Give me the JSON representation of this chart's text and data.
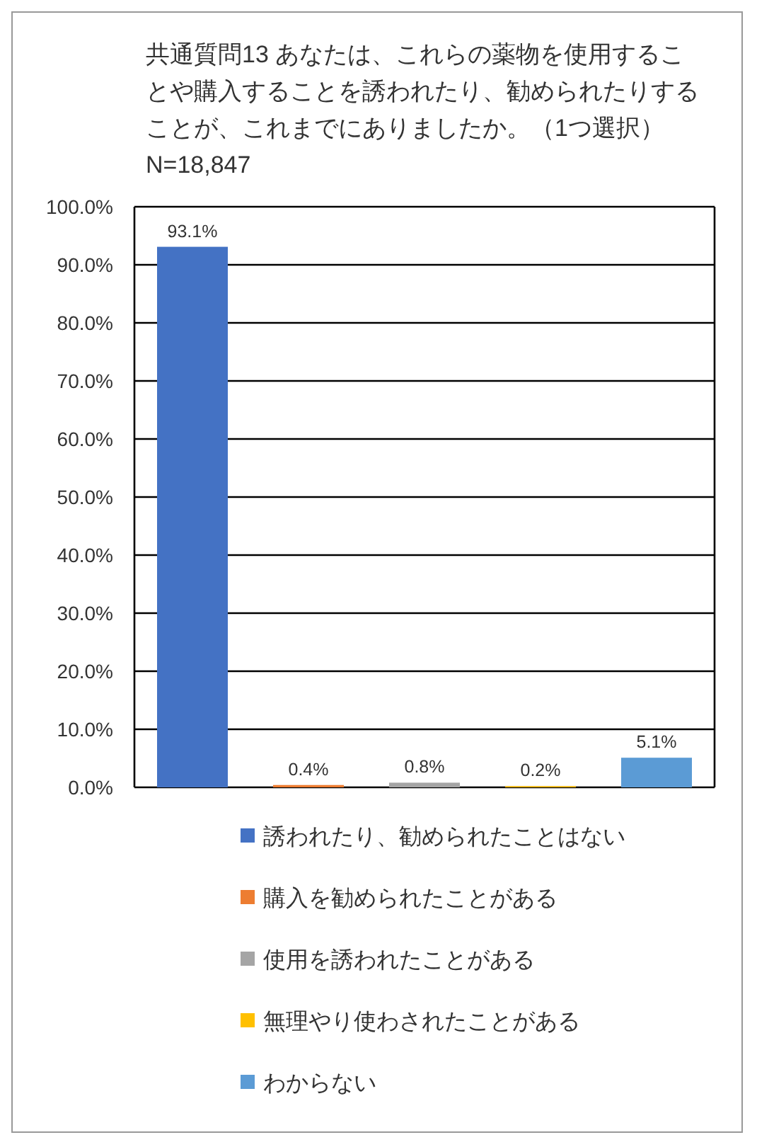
{
  "chart_data": {
    "type": "bar",
    "title": "共通質問13 あなたは、これらの薬物を使用することや購入することを誘われたり、勧められたりすることが、これまでにありましたか。（1つ選択）N=18,847",
    "categories": [
      null,
      null,
      null,
      null,
      null
    ],
    "series": [
      {
        "name": "誘われたり、勧められたことはない",
        "color": "#4472c4",
        "values": [
          93.1,
          null,
          null,
          null,
          null
        ],
        "value_labels": [
          "93.1%",
          null,
          null,
          null,
          null
        ]
      },
      {
        "name": "購入を勧められたことがある",
        "color": "#ed7d31",
        "values": [
          null,
          0.4,
          null,
          null,
          null
        ],
        "value_labels": [
          null,
          "0.4%",
          null,
          null,
          null
        ]
      },
      {
        "name": "使用を誘われたことがある",
        "color": "#a5a5a5",
        "values": [
          null,
          null,
          0.8,
          null,
          null
        ],
        "value_labels": [
          null,
          null,
          "0.8%",
          null,
          null
        ]
      },
      {
        "name": "無理やり使わされたことがある",
        "color": "#ffc000",
        "values": [
          null,
          null,
          null,
          0.2,
          null
        ],
        "value_labels": [
          null,
          null,
          null,
          "0.2%",
          null
        ]
      },
      {
        "name": "わからない",
        "color": "#5b9bd5",
        "values": [
          null,
          null,
          null,
          null,
          5.1
        ],
        "value_labels": [
          null,
          null,
          null,
          null,
          "5.1%"
        ]
      }
    ],
    "ylim": [
      0,
      100
    ],
    "yticks": [
      {
        "value": 0,
        "label": "0.0%"
      },
      {
        "value": 10,
        "label": "10.0%"
      },
      {
        "value": 20,
        "label": "20.0%"
      },
      {
        "value": 30,
        "label": "30.0%"
      },
      {
        "value": 40,
        "label": "40.0%"
      },
      {
        "value": 50,
        "label": "50.0%"
      },
      {
        "value": 60,
        "label": "60.0%"
      },
      {
        "value": 70,
        "label": "70.0%"
      },
      {
        "value": 80,
        "label": "80.0%"
      },
      {
        "value": 90,
        "label": "90.0%"
      },
      {
        "value": 100,
        "label": "100.0%"
      }
    ],
    "grid": "y",
    "legend": "bottom"
  }
}
